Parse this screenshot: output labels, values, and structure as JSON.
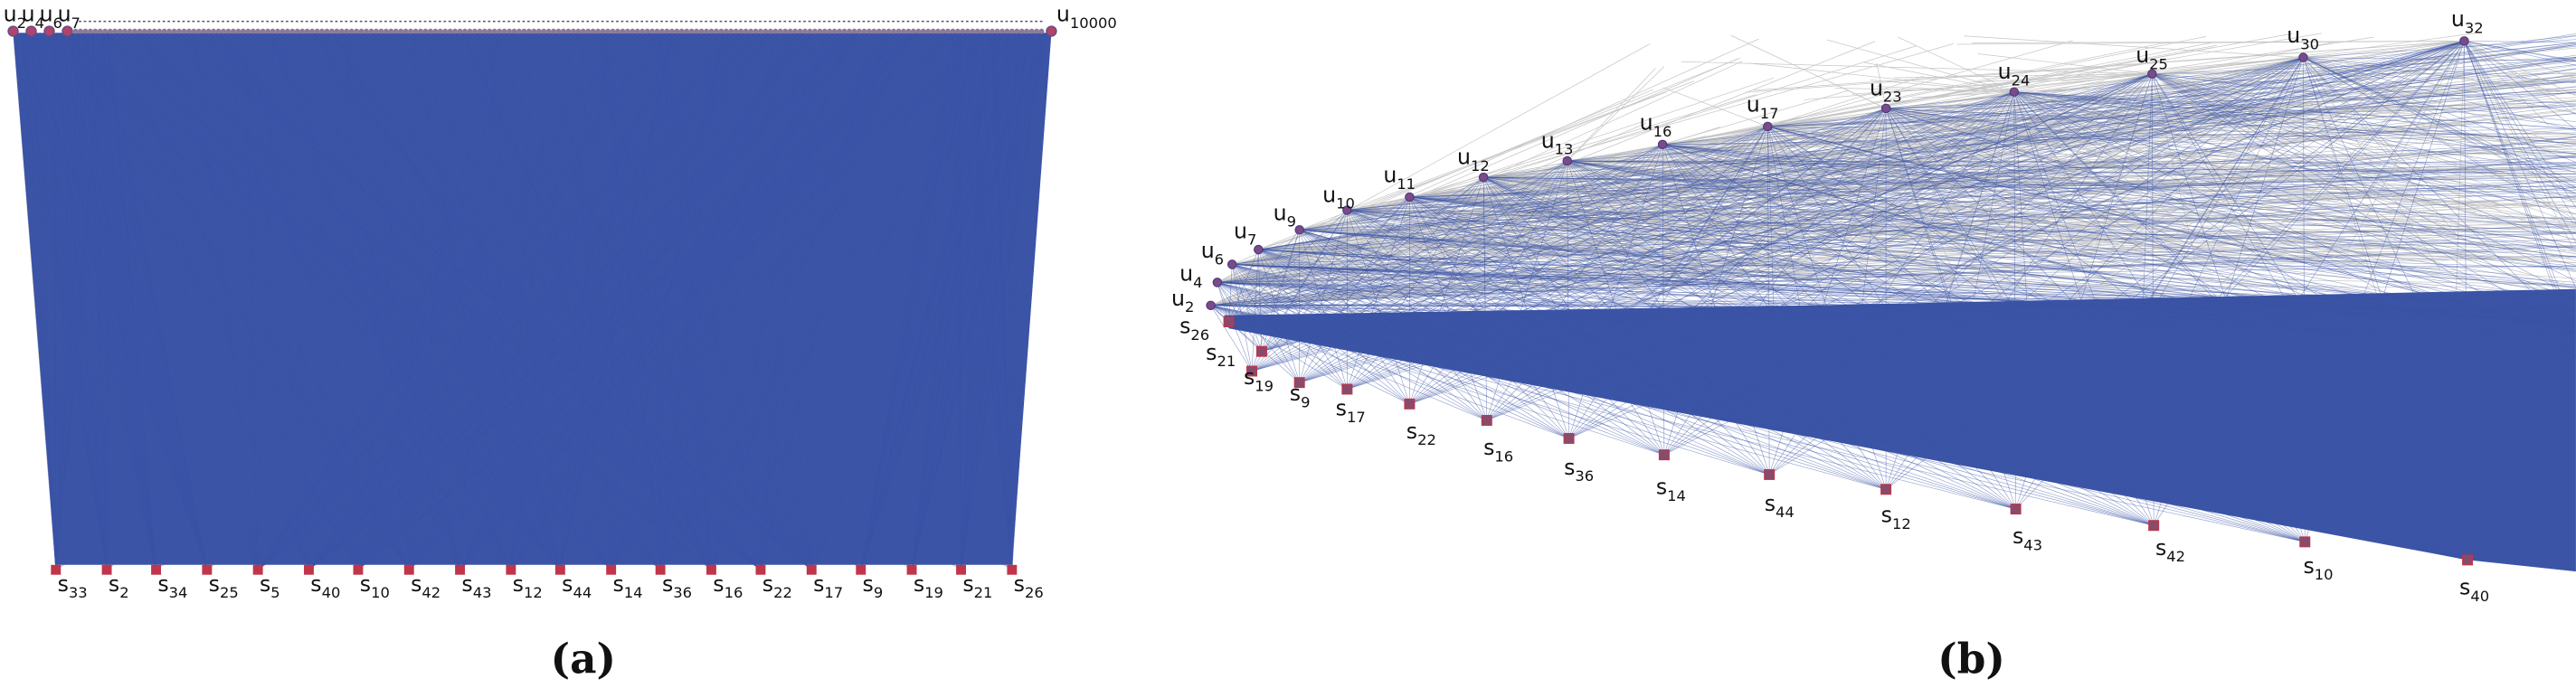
{
  "panel_a": {
    "top_nodes": [
      {
        "letter": "u",
        "index": "2"
      },
      {
        "letter": "u",
        "index": "4"
      },
      {
        "letter": "u",
        "index": "6"
      },
      {
        "letter": "u",
        "index": "7"
      },
      {
        "letter": "u",
        "index": "10000"
      }
    ],
    "bottom_nodes": [
      {
        "letter": "s",
        "index": "33"
      },
      {
        "letter": "s",
        "index": "2"
      },
      {
        "letter": "s",
        "index": "34"
      },
      {
        "letter": "s",
        "index": "25"
      },
      {
        "letter": "s",
        "index": "5"
      },
      {
        "letter": "s",
        "index": "40"
      },
      {
        "letter": "s",
        "index": "10"
      },
      {
        "letter": "s",
        "index": "42"
      },
      {
        "letter": "s",
        "index": "43"
      },
      {
        "letter": "s",
        "index": "12"
      },
      {
        "letter": "s",
        "index": "44"
      },
      {
        "letter": "s",
        "index": "14"
      },
      {
        "letter": "s",
        "index": "36"
      },
      {
        "letter": "s",
        "index": "16"
      },
      {
        "letter": "s",
        "index": "22"
      },
      {
        "letter": "s",
        "index": "17"
      },
      {
        "letter": "s",
        "index": "9"
      },
      {
        "letter": "s",
        "index": "19"
      },
      {
        "letter": "s",
        "index": "21"
      },
      {
        "letter": "s",
        "index": "26"
      }
    ],
    "caption": "(a)"
  },
  "panel_b": {
    "top_nodes": [
      {
        "letter": "u",
        "index": "2"
      },
      {
        "letter": "u",
        "index": "4"
      },
      {
        "letter": "u",
        "index": "6"
      },
      {
        "letter": "u",
        "index": "7"
      },
      {
        "letter": "u",
        "index": "9"
      },
      {
        "letter": "u",
        "index": "10"
      },
      {
        "letter": "u",
        "index": "11"
      },
      {
        "letter": "u",
        "index": "12"
      },
      {
        "letter": "u",
        "index": "13"
      },
      {
        "letter": "u",
        "index": "16"
      },
      {
        "letter": "u",
        "index": "17"
      },
      {
        "letter": "u",
        "index": "23"
      },
      {
        "letter": "u",
        "index": "24"
      },
      {
        "letter": "u",
        "index": "25"
      },
      {
        "letter": "u",
        "index": "30"
      },
      {
        "letter": "u",
        "index": "32"
      }
    ],
    "bottom_nodes": [
      {
        "letter": "s",
        "index": "26"
      },
      {
        "letter": "s",
        "index": "21"
      },
      {
        "letter": "s",
        "index": "19"
      },
      {
        "letter": "s",
        "index": "9"
      },
      {
        "letter": "s",
        "index": "17"
      },
      {
        "letter": "s",
        "index": "22"
      },
      {
        "letter": "s",
        "index": "16"
      },
      {
        "letter": "s",
        "index": "36"
      },
      {
        "letter": "s",
        "index": "14"
      },
      {
        "letter": "s",
        "index": "44"
      },
      {
        "letter": "s",
        "index": "12"
      },
      {
        "letter": "s",
        "index": "43"
      },
      {
        "letter": "s",
        "index": "42"
      },
      {
        "letter": "s",
        "index": "10"
      },
      {
        "letter": "s",
        "index": "40"
      }
    ],
    "caption": "(b)"
  }
}
